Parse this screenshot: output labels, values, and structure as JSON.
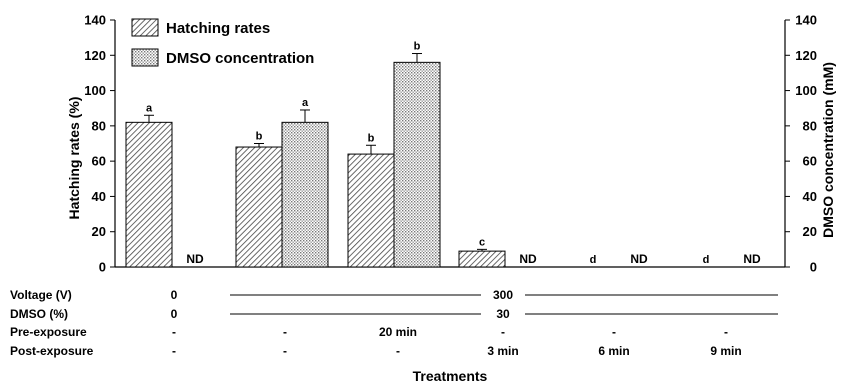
{
  "chart_data": {
    "type": "bar",
    "y_left_label": "Hatching rates (%)",
    "y_right_label": "DMSO concentration (mM)",
    "xlabel": "Treatments",
    "ylim": [
      0,
      140
    ],
    "yticks": [
      0,
      20,
      40,
      60,
      80,
      100,
      120,
      140
    ],
    "grid": false,
    "legend_position": "top-left",
    "series": [
      {
        "name": "Hatching rates",
        "pattern": "diagonal-hatch",
        "values": [
          82,
          68,
          64,
          9,
          null,
          null
        ],
        "errors": [
          4,
          2,
          5,
          1,
          null,
          null
        ],
        "letters": [
          "a",
          "b",
          "b",
          "c",
          "d",
          "d"
        ]
      },
      {
        "name": "DMSO concentration",
        "pattern": "dotted",
        "values": [
          null,
          82,
          116,
          null,
          null,
          null
        ],
        "errors": [
          null,
          7,
          5,
          null,
          null,
          null
        ],
        "letters": [
          "",
          "a",
          "b",
          "",
          "",
          ""
        ]
      }
    ],
    "nd_markers": [
      "ND",
      "ND",
      "ND",
      "ND"
    ],
    "treatment_table": {
      "rows": [
        {
          "label": "Voltage (V)",
          "first": "0",
          "rest": "300"
        },
        {
          "label": "DMSO (%)",
          "first": "0",
          "rest": "30"
        },
        {
          "label": "Pre-exposure",
          "values": [
            "-",
            "-",
            "20 min",
            "-",
            "-",
            "-"
          ]
        },
        {
          "label": "Post-exposure",
          "values": [
            "-",
            "-",
            "-",
            "3 min",
            "6 min",
            "9 min"
          ]
        }
      ]
    }
  }
}
